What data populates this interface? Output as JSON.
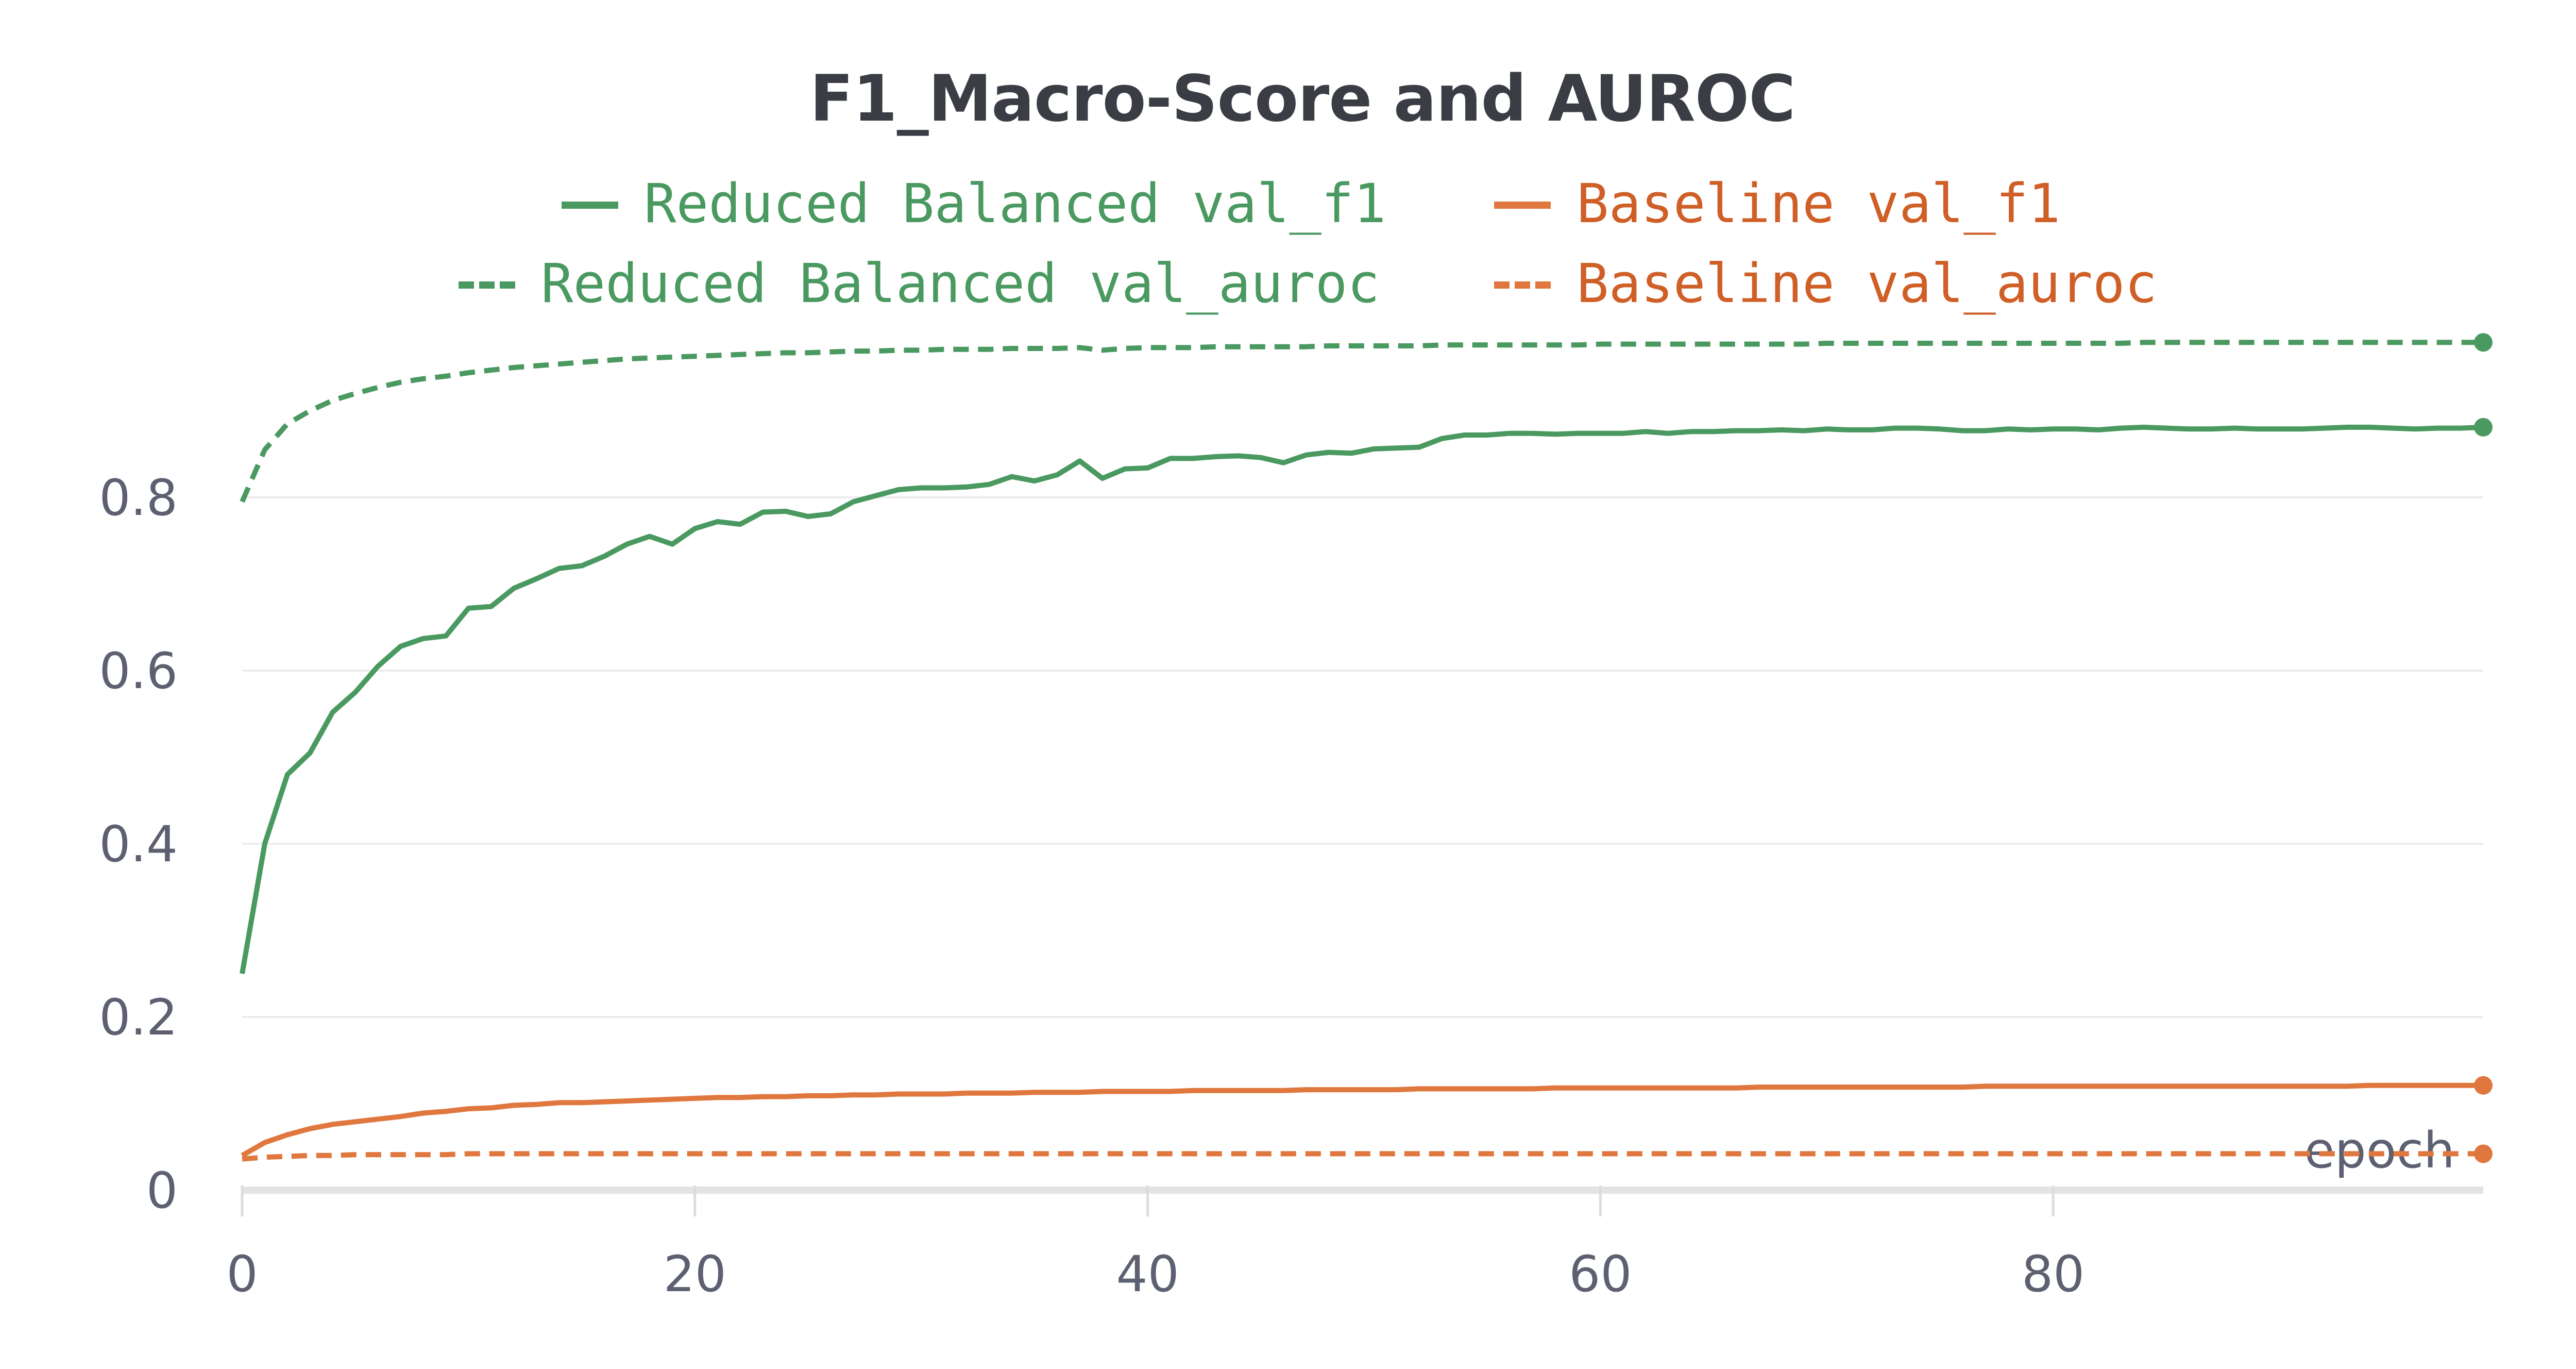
{
  "chart_data": {
    "type": "line",
    "title": "F1_Macro-Score and AUROC",
    "xlabel": "epoch",
    "ylabel": "",
    "xlim": [
      0,
      99
    ],
    "ylim": [
      0,
      0.95
    ],
    "x_ticks": [
      "0",
      "20",
      "40",
      "60",
      "80"
    ],
    "y_ticks": [
      "0",
      "0.2",
      "0.4",
      "0.6",
      "0.8"
    ],
    "grid": true,
    "legend_position": "top-center",
    "series": [
      {
        "name": "Reduced Balanced val_f1",
        "color": "#4a9960",
        "dash": "solid",
        "values": [
          0.25,
          0.4,
          0.48,
          0.505,
          0.552,
          0.575,
          0.605,
          0.628,
          0.637,
          0.64,
          0.672,
          0.674,
          0.695,
          0.706,
          0.718,
          0.721,
          0.732,
          0.746,
          0.755,
          0.746,
          0.764,
          0.772,
          0.769,
          0.783,
          0.784,
          0.778,
          0.781,
          0.795,
          0.802,
          0.809,
          0.811,
          0.811,
          0.812,
          0.815,
          0.824,
          0.819,
          0.826,
          0.842,
          0.822,
          0.833,
          0.834,
          0.845,
          0.845,
          0.847,
          0.848,
          0.846,
          0.84,
          0.849,
          0.852,
          0.851,
          0.856,
          0.857,
          0.858,
          0.868,
          0.872,
          0.872,
          0.874,
          0.874,
          0.873,
          0.874,
          0.874,
          0.874,
          0.876,
          0.874,
          0.876,
          0.876,
          0.877,
          0.877,
          0.878,
          0.877,
          0.879,
          0.878,
          0.878,
          0.88,
          0.88,
          0.879,
          0.877,
          0.877,
          0.879,
          0.878,
          0.879,
          0.879,
          0.878,
          0.88,
          0.881,
          0.88,
          0.879,
          0.879,
          0.88,
          0.879,
          0.879,
          0.879,
          0.88,
          0.881,
          0.881,
          0.88,
          0.879,
          0.88,
          0.88,
          0.881
        ]
      },
      {
        "name": "Baseline val_f1",
        "color": "#e0773e",
        "dash": "solid",
        "values": [
          0.04,
          0.055,
          0.064,
          0.071,
          0.076,
          0.079,
          0.082,
          0.085,
          0.089,
          0.091,
          0.094,
          0.095,
          0.098,
          0.099,
          0.101,
          0.101,
          0.102,
          0.103,
          0.104,
          0.105,
          0.106,
          0.107,
          0.107,
          0.108,
          0.108,
          0.109,
          0.109,
          0.11,
          0.11,
          0.111,
          0.111,
          0.111,
          0.112,
          0.112,
          0.112,
          0.113,
          0.113,
          0.113,
          0.114,
          0.114,
          0.114,
          0.114,
          0.115,
          0.115,
          0.115,
          0.115,
          0.115,
          0.116,
          0.116,
          0.116,
          0.116,
          0.116,
          0.117,
          0.117,
          0.117,
          0.117,
          0.117,
          0.117,
          0.118,
          0.118,
          0.118,
          0.118,
          0.118,
          0.118,
          0.118,
          0.118,
          0.118,
          0.119,
          0.119,
          0.119,
          0.119,
          0.119,
          0.119,
          0.119,
          0.119,
          0.119,
          0.119,
          0.12,
          0.12,
          0.12,
          0.12,
          0.12,
          0.12,
          0.12,
          0.12,
          0.12,
          0.12,
          0.12,
          0.12,
          0.12,
          0.12,
          0.12,
          0.12,
          0.12,
          0.121,
          0.121,
          0.121,
          0.121,
          0.121,
          0.121
        ]
      },
      {
        "name": "Reduced Balanced val_auroc",
        "color": "#4a9960",
        "dash": "dashed",
        "values": [
          0.795,
          0.855,
          0.885,
          0.9,
          0.912,
          0.92,
          0.927,
          0.933,
          0.937,
          0.94,
          0.944,
          0.947,
          0.95,
          0.952,
          0.954,
          0.956,
          0.958,
          0.96,
          0.961,
          0.962,
          0.963,
          0.964,
          0.965,
          0.966,
          0.967,
          0.967,
          0.968,
          0.969,
          0.969,
          0.97,
          0.97,
          0.971,
          0.971,
          0.971,
          0.972,
          0.972,
          0.972,
          0.973,
          0.97,
          0.972,
          0.973,
          0.973,
          0.973,
          0.974,
          0.974,
          0.974,
          0.974,
          0.974,
          0.975,
          0.975,
          0.975,
          0.975,
          0.975,
          0.976,
          0.976,
          0.976,
          0.976,
          0.976,
          0.976,
          0.976,
          0.977,
          0.977,
          0.977,
          0.977,
          0.977,
          0.977,
          0.977,
          0.977,
          0.977,
          0.977,
          0.978,
          0.978,
          0.978,
          0.978,
          0.978,
          0.978,
          0.978,
          0.978,
          0.978,
          0.978,
          0.978,
          0.978,
          0.978,
          0.978,
          0.979,
          0.979,
          0.979,
          0.979,
          0.979,
          0.979,
          0.979,
          0.979,
          0.979,
          0.979,
          0.979,
          0.979,
          0.979,
          0.979,
          0.979,
          0.979
        ]
      },
      {
        "name": "Baseline val_auroc",
        "color": "#e0773e",
        "dash": "dashed",
        "values": [
          0.036,
          0.038,
          0.039,
          0.04,
          0.04,
          0.041,
          0.041,
          0.041,
          0.041,
          0.041,
          0.042,
          0.042,
          0.042,
          0.042,
          0.042,
          0.042,
          0.042,
          0.042,
          0.042,
          0.042,
          0.042,
          0.042,
          0.042,
          0.042,
          0.042,
          0.042,
          0.042,
          0.042,
          0.042,
          0.042,
          0.042,
          0.042,
          0.042,
          0.042,
          0.042,
          0.042,
          0.042,
          0.042,
          0.042,
          0.042,
          0.042,
          0.042,
          0.042,
          0.042,
          0.042,
          0.042,
          0.042,
          0.042,
          0.042,
          0.042,
          0.042,
          0.042,
          0.042,
          0.042,
          0.042,
          0.042,
          0.042,
          0.042,
          0.042,
          0.042,
          0.042,
          0.042,
          0.042,
          0.042,
          0.042,
          0.042,
          0.042,
          0.042,
          0.042,
          0.042,
          0.042,
          0.042,
          0.042,
          0.042,
          0.042,
          0.042,
          0.042,
          0.042,
          0.042,
          0.042,
          0.042,
          0.042,
          0.042,
          0.042,
          0.042,
          0.042,
          0.042,
          0.042,
          0.042,
          0.042,
          0.042,
          0.042,
          0.042,
          0.042,
          0.042,
          0.042,
          0.042,
          0.042,
          0.042,
          0.042
        ]
      }
    ]
  }
}
